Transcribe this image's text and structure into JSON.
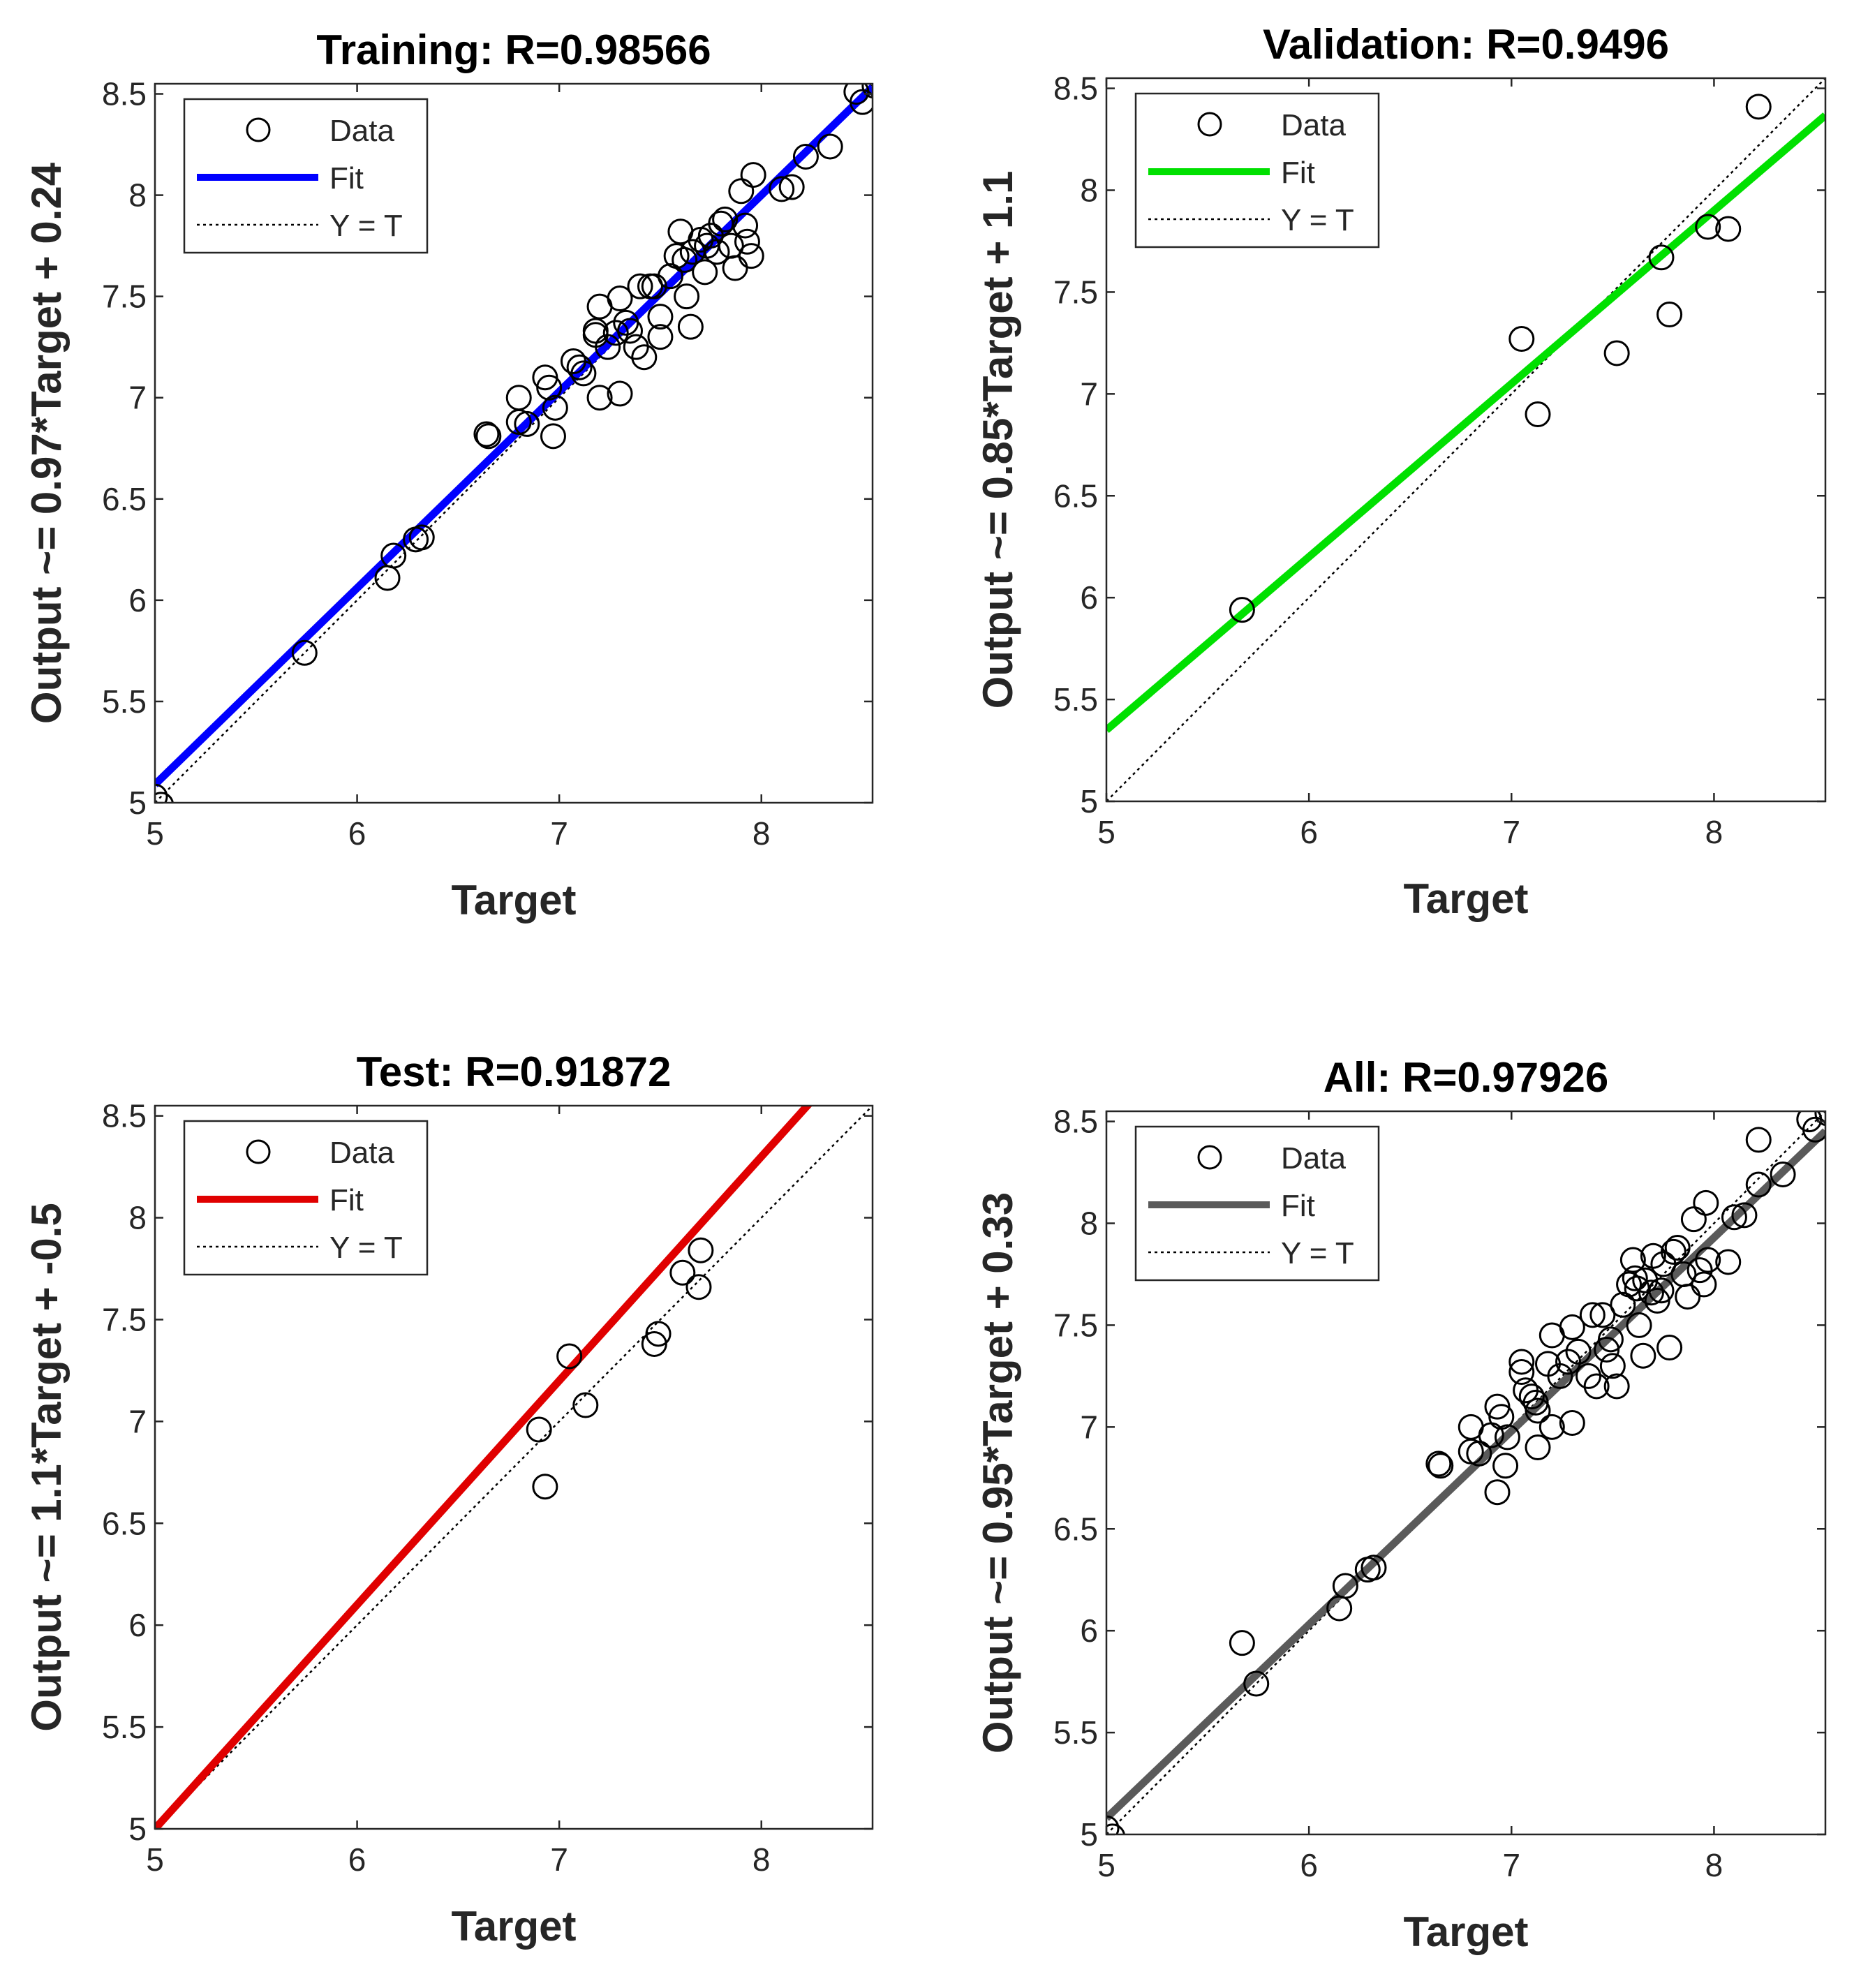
{
  "colors": {
    "training_fit": "#0000ff",
    "validation_fit": "#00e000",
    "test_fit": "#e00000",
    "all_fit": "#5a5a5a",
    "marker": "#000000",
    "identity": "#000000",
    "axes": "#262626"
  },
  "legend": {
    "data_label": "Data",
    "fit_label": "Fit",
    "identity_label": "Y = T"
  },
  "chart_data": [
    {
      "type": "scatter",
      "title": "Training: R=0.98566",
      "xlabel": "Target",
      "ylabel": "Output ~= 0.97*Target + 0.24",
      "xlim": [
        5,
        8.55
      ],
      "ylim": [
        5,
        8.55
      ],
      "xticks": [
        "5",
        "6",
        "7",
        "8"
      ],
      "yticks": [
        "5",
        "5.5",
        "6",
        "6.5",
        "7",
        "7.5",
        "8",
        "8.5"
      ],
      "fit": {
        "slope": 0.97,
        "intercept": 0.24,
        "color_key": "training_fit"
      },
      "legend_position": "top-left",
      "points": [
        [
          5.0,
          5.03
        ],
        [
          5.03,
          4.99
        ],
        [
          5.74,
          5.74
        ],
        [
          6.15,
          6.11
        ],
        [
          6.18,
          6.22
        ],
        [
          6.29,
          6.3
        ],
        [
          6.32,
          6.31
        ],
        [
          6.64,
          6.82
        ],
        [
          6.65,
          6.81
        ],
        [
          6.8,
          6.88
        ],
        [
          6.8,
          7.0
        ],
        [
          6.84,
          6.87
        ],
        [
          6.93,
          7.1
        ],
        [
          6.95,
          7.05
        ],
        [
          6.97,
          6.81
        ],
        [
          6.98,
          6.95
        ],
        [
          7.07,
          7.18
        ],
        [
          7.1,
          7.15
        ],
        [
          7.12,
          7.12
        ],
        [
          7.18,
          7.31
        ],
        [
          7.18,
          7.33
        ],
        [
          7.2,
          7.45
        ],
        [
          7.2,
          7.0
        ],
        [
          7.24,
          7.25
        ],
        [
          7.28,
          7.32
        ],
        [
          7.3,
          7.49
        ],
        [
          7.3,
          7.02
        ],
        [
          7.33,
          7.37
        ],
        [
          7.35,
          7.33
        ],
        [
          7.38,
          7.25
        ],
        [
          7.4,
          7.55
        ],
        [
          7.42,
          7.2
        ],
        [
          7.45,
          7.55
        ],
        [
          7.47,
          7.55
        ],
        [
          7.5,
          7.3
        ],
        [
          7.5,
          7.4
        ],
        [
          7.55,
          7.6
        ],
        [
          7.58,
          7.7
        ],
        [
          7.6,
          7.82
        ],
        [
          7.62,
          7.68
        ],
        [
          7.63,
          7.5
        ],
        [
          7.65,
          7.35
        ],
        [
          7.66,
          7.72
        ],
        [
          7.7,
          7.78
        ],
        [
          7.72,
          7.62
        ],
        [
          7.73,
          7.75
        ],
        [
          7.75,
          7.8
        ],
        [
          7.78,
          7.72
        ],
        [
          7.8,
          7.86
        ],
        [
          7.82,
          7.88
        ],
        [
          7.85,
          7.75
        ],
        [
          7.87,
          7.64
        ],
        [
          7.9,
          8.02
        ],
        [
          7.92,
          7.85
        ],
        [
          7.93,
          7.77
        ],
        [
          7.95,
          7.7
        ],
        [
          7.96,
          8.1
        ],
        [
          8.1,
          8.03
        ],
        [
          8.15,
          8.04
        ],
        [
          8.22,
          8.19
        ],
        [
          8.34,
          8.24
        ],
        [
          8.47,
          8.51
        ],
        [
          8.5,
          8.46
        ],
        [
          8.56,
          8.54
        ]
      ]
    },
    {
      "type": "scatter",
      "title": "Validation: R=0.9496",
      "xlabel": "Target",
      "ylabel": "Output ~= 0.85*Target + 1.1",
      "xlim": [
        5,
        8.55
      ],
      "ylim": [
        5,
        8.55
      ],
      "xticks": [
        "5",
        "6",
        "7",
        "8"
      ],
      "yticks": [
        "5",
        "5.5",
        "6",
        "6.5",
        "7",
        "7.5",
        "8",
        "8.5"
      ],
      "fit": {
        "slope": 0.85,
        "intercept": 1.1,
        "color_key": "validation_fit"
      },
      "legend_position": "top-left",
      "points": [
        [
          5.67,
          5.94
        ],
        [
          7.05,
          7.27
        ],
        [
          7.13,
          6.9
        ],
        [
          7.52,
          7.2
        ],
        [
          7.74,
          7.67
        ],
        [
          7.78,
          7.39
        ],
        [
          7.97,
          7.82
        ],
        [
          8.07,
          7.81
        ],
        [
          8.22,
          8.41
        ]
      ]
    },
    {
      "type": "scatter",
      "title": "Test: R=0.91872",
      "xlabel": "Target",
      "ylabel": "Output ~= 1.1*Target + -0.5",
      "xlim": [
        5,
        8.55
      ],
      "ylim": [
        5,
        8.55
      ],
      "xticks": [
        "5",
        "6",
        "7",
        "8"
      ],
      "yticks": [
        "5",
        "5.5",
        "6",
        "6.5",
        "7",
        "7.5",
        "8",
        "8.5"
      ],
      "fit": {
        "slope": 1.1,
        "intercept": -0.5,
        "color_key": "test_fit"
      },
      "legend_position": "top-left",
      "points": [
        [
          6.9,
          6.96
        ],
        [
          6.93,
          6.68
        ],
        [
          7.05,
          7.32
        ],
        [
          7.13,
          7.08
        ],
        [
          7.47,
          7.38
        ],
        [
          7.49,
          7.43
        ],
        [
          7.61,
          7.73
        ],
        [
          7.69,
          7.66
        ],
        [
          7.7,
          7.84
        ]
      ]
    },
    {
      "type": "scatter",
      "title": "All: R=0.97926",
      "xlabel": "Target",
      "ylabel": "Output ~= 0.95*Target + 0.33",
      "xlim": [
        5,
        8.55
      ],
      "ylim": [
        5,
        8.55
      ],
      "xticks": [
        "5",
        "6",
        "7",
        "8"
      ],
      "yticks": [
        "5",
        "5.5",
        "6",
        "6.5",
        "7",
        "7.5",
        "8",
        "8.5"
      ],
      "fit": {
        "slope": 0.95,
        "intercept": 0.33,
        "color_key": "all_fit"
      },
      "legend_position": "top-left",
      "points": [
        [
          5.0,
          5.03
        ],
        [
          5.03,
          4.99
        ],
        [
          5.67,
          5.94
        ],
        [
          5.74,
          5.74
        ],
        [
          6.15,
          6.11
        ],
        [
          6.18,
          6.22
        ],
        [
          6.29,
          6.3
        ],
        [
          6.32,
          6.31
        ],
        [
          6.64,
          6.82
        ],
        [
          6.65,
          6.81
        ],
        [
          6.8,
          6.88
        ],
        [
          6.8,
          7.0
        ],
        [
          6.84,
          6.87
        ],
        [
          6.9,
          6.96
        ],
        [
          6.93,
          6.68
        ],
        [
          6.93,
          7.1
        ],
        [
          6.95,
          7.05
        ],
        [
          6.97,
          6.81
        ],
        [
          6.98,
          6.95
        ],
        [
          7.05,
          7.27
        ],
        [
          7.05,
          7.32
        ],
        [
          7.07,
          7.18
        ],
        [
          7.1,
          7.15
        ],
        [
          7.12,
          7.12
        ],
        [
          7.13,
          6.9
        ],
        [
          7.13,
          7.08
        ],
        [
          7.18,
          7.31
        ],
        [
          7.2,
          7.45
        ],
        [
          7.2,
          7.0
        ],
        [
          7.24,
          7.25
        ],
        [
          7.28,
          7.32
        ],
        [
          7.3,
          7.49
        ],
        [
          7.3,
          7.02
        ],
        [
          7.33,
          7.37
        ],
        [
          7.38,
          7.25
        ],
        [
          7.4,
          7.55
        ],
        [
          7.42,
          7.2
        ],
        [
          7.45,
          7.55
        ],
        [
          7.47,
          7.38
        ],
        [
          7.49,
          7.43
        ],
        [
          7.5,
          7.3
        ],
        [
          7.52,
          7.2
        ],
        [
          7.55,
          7.6
        ],
        [
          7.58,
          7.7
        ],
        [
          7.6,
          7.82
        ],
        [
          7.61,
          7.73
        ],
        [
          7.62,
          7.68
        ],
        [
          7.63,
          7.5
        ],
        [
          7.65,
          7.35
        ],
        [
          7.66,
          7.72
        ],
        [
          7.69,
          7.66
        ],
        [
          7.7,
          7.84
        ],
        [
          7.72,
          7.62
        ],
        [
          7.74,
          7.67
        ],
        [
          7.75,
          7.8
        ],
        [
          7.78,
          7.39
        ],
        [
          7.8,
          7.86
        ],
        [
          7.82,
          7.88
        ],
        [
          7.85,
          7.75
        ],
        [
          7.87,
          7.64
        ],
        [
          7.9,
          8.02
        ],
        [
          7.93,
          7.77
        ],
        [
          7.95,
          7.7
        ],
        [
          7.96,
          8.1
        ],
        [
          7.97,
          7.82
        ],
        [
          8.07,
          7.81
        ],
        [
          8.1,
          8.03
        ],
        [
          8.15,
          8.04
        ],
        [
          8.22,
          8.41
        ],
        [
          8.22,
          8.19
        ],
        [
          8.34,
          8.24
        ],
        [
          8.47,
          8.51
        ],
        [
          8.5,
          8.46
        ],
        [
          8.56,
          8.54
        ]
      ]
    }
  ]
}
